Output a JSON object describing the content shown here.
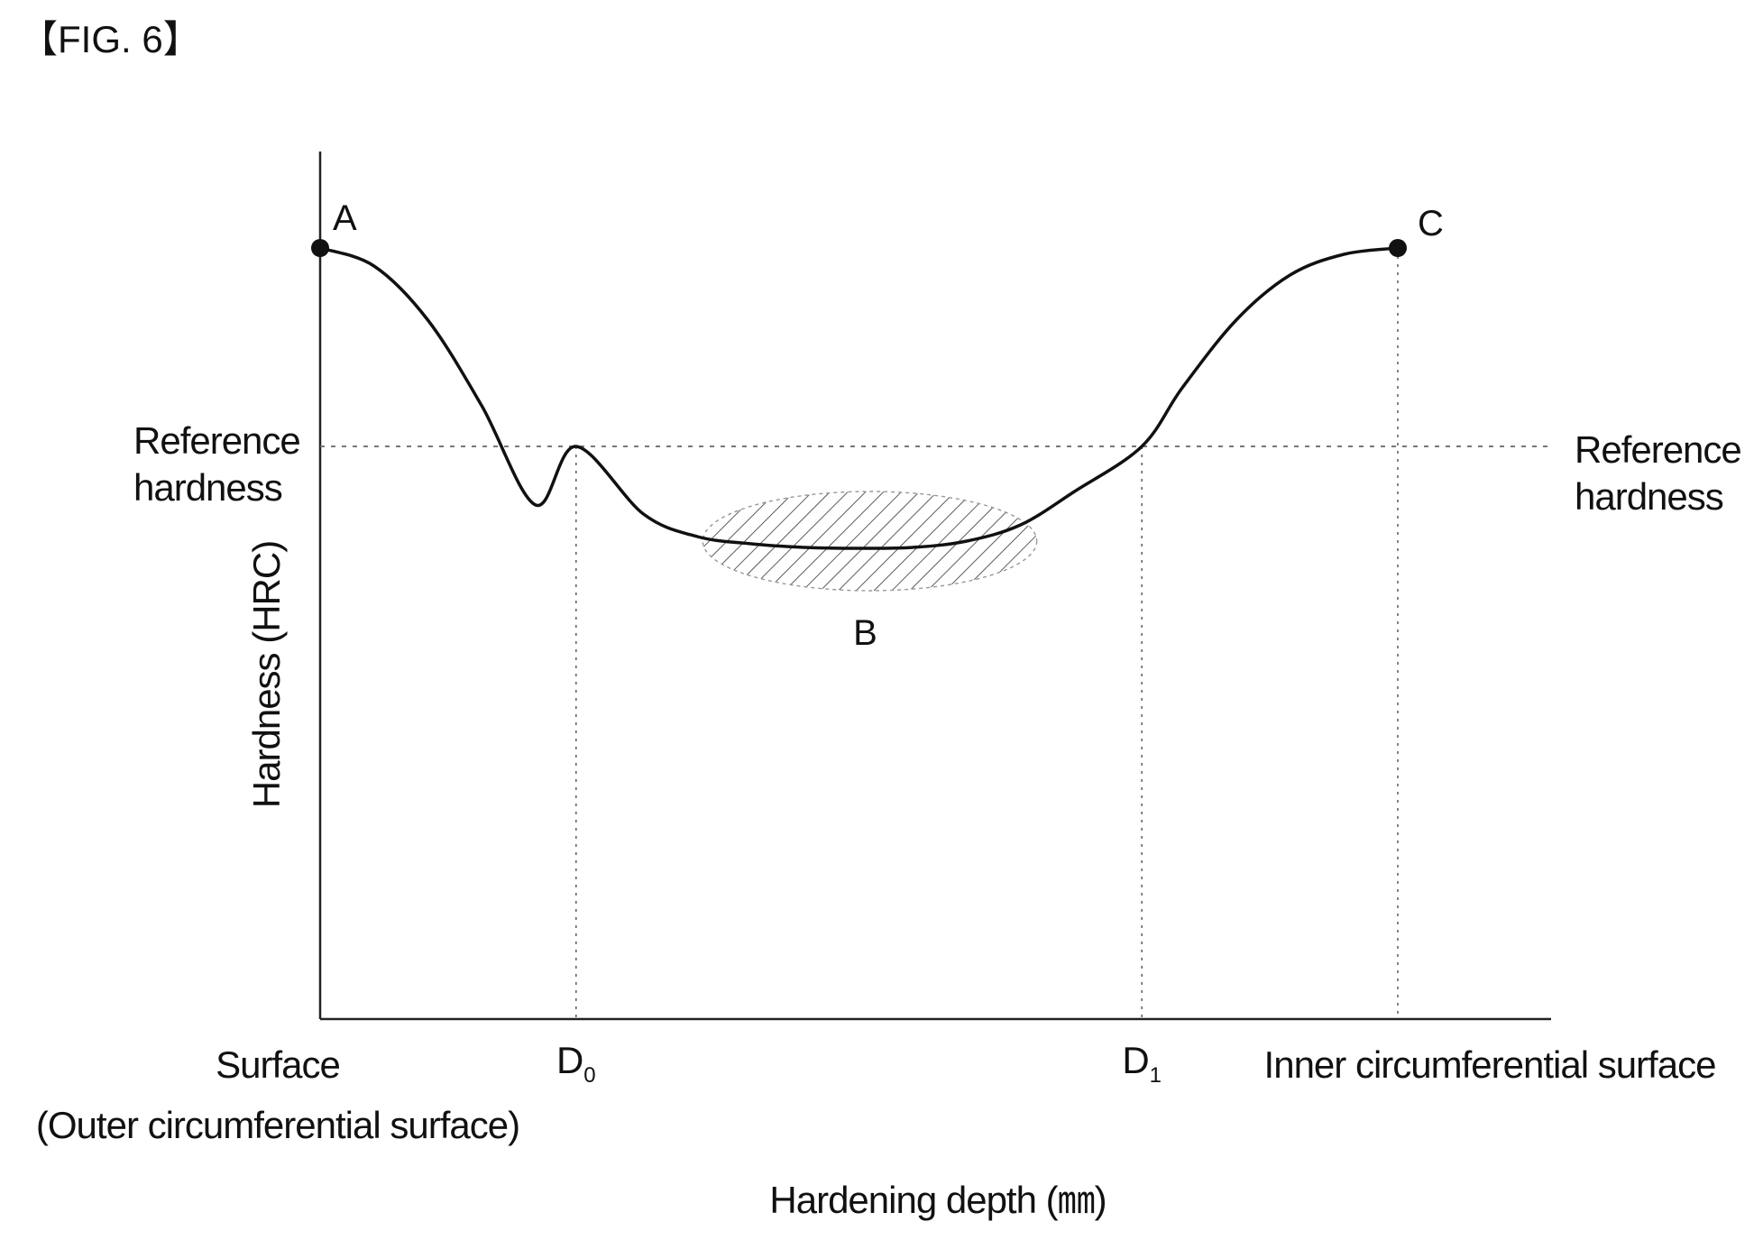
{
  "figure": {
    "label": "【FIG. 6】"
  },
  "chart_data": {
    "type": "line",
    "xlabel": "Hardening depth (㎜)",
    "ylabel": "Hardness (HRC)",
    "x_start_label": [
      "Surface",
      "(Outer circumferential surface)"
    ],
    "x_end_label": "Inner circumferential surface",
    "reference_line": {
      "label_left": [
        "Reference",
        "hardness"
      ],
      "label_right": [
        "Reference",
        "hardness"
      ]
    },
    "depth_ticks": [
      {
        "label": "D",
        "sub": "0",
        "x": 0.2375
      },
      {
        "label": "D",
        "sub": "1",
        "x": 0.7625
      }
    ],
    "points": [
      {
        "name": "A",
        "x": 0.0,
        "y": 0.855
      },
      {
        "name": "C",
        "x": 1.0,
        "y": 0.855
      }
    ],
    "curve": {
      "x": [
        0.0,
        0.05,
        0.1,
        0.15,
        0.2,
        0.2375,
        0.3,
        0.35,
        0.4,
        0.45,
        0.5,
        0.55,
        0.6,
        0.65,
        0.7,
        0.7625,
        0.8,
        0.85,
        0.9,
        0.95,
        1.0
      ],
      "y": [
        0.855,
        0.835,
        0.775,
        0.68,
        0.57,
        0.635,
        0.56,
        0.535,
        0.527,
        0.523,
        0.522,
        0.523,
        0.53,
        0.548,
        0.585,
        0.635,
        0.7,
        0.775,
        0.825,
        0.848,
        0.855
      ]
    },
    "reference_y": 0.635,
    "region": {
      "name": "B",
      "x_center": 0.51,
      "y_center": 0.53,
      "x_radius": 0.155,
      "y_radius": 0.055
    },
    "xlim": [
      0,
      1
    ],
    "ylim": [
      0,
      1
    ],
    "grid": false,
    "legend": "none"
  }
}
